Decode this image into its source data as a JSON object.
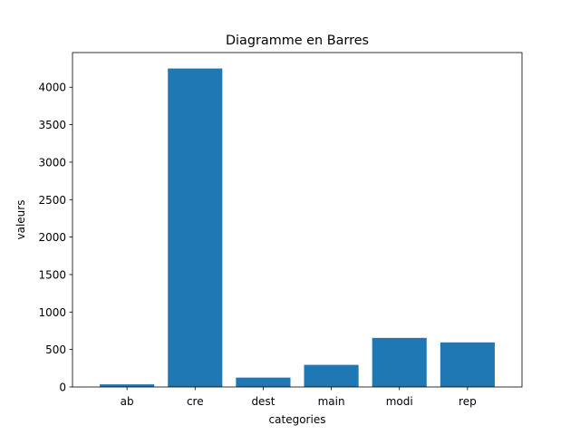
{
  "chart_data": {
    "type": "bar",
    "title": "Diagramme en Barres",
    "xlabel": "categories",
    "ylabel": "valeurs",
    "categories": [
      "ab",
      "cre",
      "dest",
      "main",
      "modi",
      "rep"
    ],
    "values": [
      35,
      4250,
      125,
      295,
      655,
      595
    ],
    "ylim": [
      0,
      4462.5
    ],
    "yticks": [
      0,
      500,
      1000,
      1500,
      2000,
      2500,
      3000,
      3500,
      4000
    ],
    "grid": false,
    "bar_color": "#1f77b4"
  }
}
